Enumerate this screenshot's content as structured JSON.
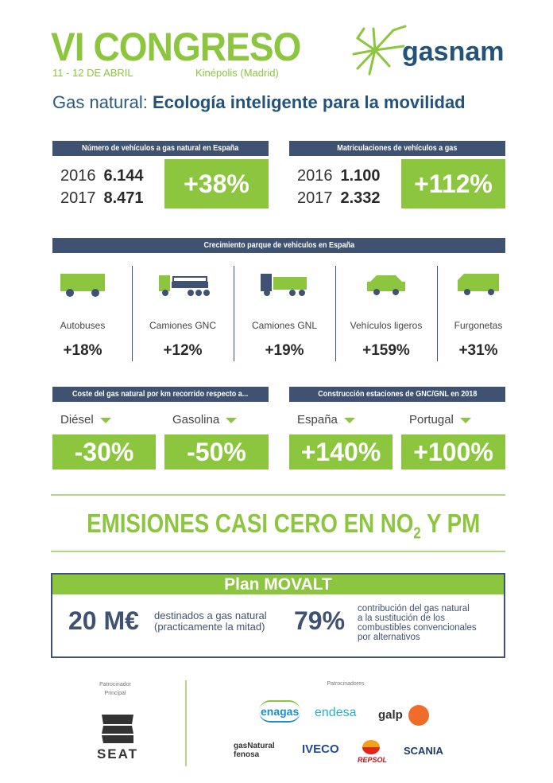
{
  "header": {
    "title": "VI CONGRESO",
    "date": "11 - 12 DE ABRIL",
    "venue": "Kinépolis (Madrid)",
    "logo": "gasnam",
    "subtitle_light": "Gas natural:",
    "subtitle_bold": "Ecología inteligente para la movilidad"
  },
  "vehicles_spain": {
    "title": "Número de vehículos a gas natural en España",
    "rows": [
      {
        "year": "2016",
        "value": "6.144"
      },
      {
        "year": "2017",
        "value": "8.471"
      }
    ],
    "change": "+38%"
  },
  "registrations": {
    "title": "Matriculaciones de vehículos a gas",
    "rows": [
      {
        "year": "2016",
        "value": "1.100"
      },
      {
        "year": "2017",
        "value": "2.332"
      }
    ],
    "change": "+112%"
  },
  "growth": {
    "title": "Crecimiento parque de vehiculos en España",
    "items": [
      {
        "icon": "bus-icon",
        "label": "Autobuses",
        "pct": "+18%"
      },
      {
        "icon": "cng-truck-icon",
        "label": "Camiones GNC",
        "pct": "+12%"
      },
      {
        "icon": "lng-truck-icon",
        "label": "Camiones GNL",
        "pct": "+19%"
      },
      {
        "icon": "car-icon",
        "label": "Vehículos ligeros",
        "pct": "+159%"
      },
      {
        "icon": "van-icon",
        "label": "Furgonetas",
        "pct": "+31%"
      }
    ]
  },
  "cost": {
    "title": "Coste del gas natural por km recorrido respecto a...",
    "items": [
      {
        "label": "Diésel",
        "value": "-30%"
      },
      {
        "label": "Gasolina",
        "value": "-50%"
      }
    ]
  },
  "stations": {
    "title": "Construcción estaciones de GNC/GNL en 2018",
    "items": [
      {
        "label": "España",
        "value": "+140%"
      },
      {
        "label": "Portugal",
        "value": "+100%"
      }
    ]
  },
  "emissions": {
    "text_a": "EMISIONES CASI CERO EN NO",
    "sub": "2",
    "text_b": " Y PM"
  },
  "plan": {
    "title": "Plan MOVALT",
    "amount": "20 M€",
    "amount_desc_1": "destinados a gas natural",
    "amount_desc_2": "(practicamente la mitad)",
    "pct": "79%",
    "pct_desc": [
      "contribución del gas natural",
      "a la sustitución de los",
      "combustibles convencionales",
      "por alternativos"
    ]
  },
  "sponsors": {
    "main_label_1": "Patrocinador",
    "main_label_2": "Principal",
    "main": "SEAT",
    "label": "Patrocinadores",
    "list": [
      "enagas",
      "endesa",
      "galp",
      "gasNatural fenosa",
      "IVECO",
      "REPSOL",
      "SCANIA"
    ]
  },
  "colors": {
    "green": "#8cc63f",
    "navy": "#3f5272",
    "blue": "#23527a"
  }
}
